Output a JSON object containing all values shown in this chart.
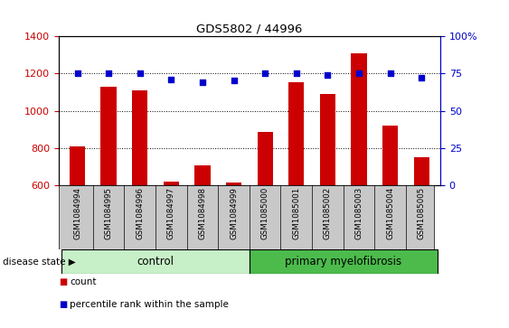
{
  "title": "GDS5802 / 44996",
  "categories": [
    "GSM1084994",
    "GSM1084995",
    "GSM1084996",
    "GSM1084997",
    "GSM1084998",
    "GSM1084999",
    "GSM1085000",
    "GSM1085001",
    "GSM1085002",
    "GSM1085003",
    "GSM1085004",
    "GSM1085005"
  ],
  "counts": [
    810,
    1130,
    1110,
    620,
    705,
    615,
    885,
    1155,
    1090,
    1310,
    920,
    750
  ],
  "percentiles": [
    75,
    75,
    75,
    71,
    69,
    70,
    75,
    75,
    74,
    75,
    75,
    72
  ],
  "bar_color": "#cc0000",
  "dot_color": "#0000cc",
  "ylim_left": [
    600,
    1400
  ],
  "ylim_right": [
    0,
    100
  ],
  "yticks_left": [
    600,
    800,
    1000,
    1200,
    1400
  ],
  "yticks_right": [
    0,
    25,
    50,
    75,
    100
  ],
  "control_count": 6,
  "control_label": "control",
  "disease_label": "primary myelofibrosis",
  "disease_state_label": "disease state",
  "legend_count_label": "count",
  "legend_pct_label": "percentile rank within the sample",
  "control_color": "#90ee90",
  "disease_color": "#4cbb4c",
  "bar_width": 0.5,
  "tick_label_color_left": "#cc0000",
  "tick_label_color_right": "#0000cc",
  "gridlines": [
    800,
    1000,
    1200
  ],
  "gray_label_bg": "#c8c8c8"
}
